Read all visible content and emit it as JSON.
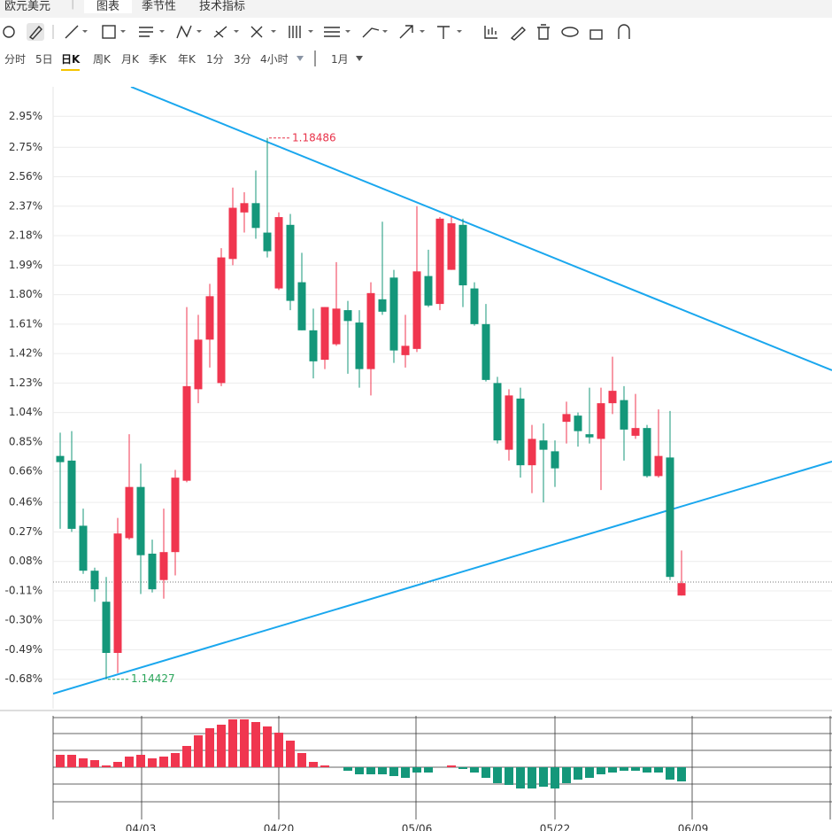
{
  "toolbar": {
    "symbol": "欧元美元",
    "tabs": [
      "图表",
      "季节性",
      "技术指标"
    ],
    "periods": [
      "分时",
      "5日",
      "日K",
      "周K",
      "月K",
      "季K",
      "年K",
      "1分",
      "3分",
      "4小时"
    ],
    "range": "1月"
  },
  "chart_data": [
    {
      "type": "candlestick",
      "categories": [
        null,
        null,
        null,
        null,
        null,
        null,
        null,
        "04/03",
        null,
        null,
        null,
        null,
        null,
        null,
        null,
        null,
        null,
        null,
        null,
        "04/20",
        null,
        null,
        null,
        null,
        null,
        null,
        null,
        null,
        null,
        null,
        null,
        "05/06",
        null,
        null,
        null,
        null,
        null,
        null,
        null,
        null,
        null,
        null,
        null,
        "05/22",
        null,
        null,
        null,
        null,
        null,
        null,
        null,
        null,
        null,
        null,
        null,
        "06/09"
      ],
      "open": [
        0.76,
        0.73,
        0.31,
        0.02,
        -0.18,
        -0.51,
        0.23,
        0.56,
        0.13,
        -0.04,
        0.14,
        0.6,
        1.19,
        1.51,
        1.23,
        2.03,
        2.33,
        2.39,
        2.2,
        1.84,
        2.25,
        1.88,
        1.57,
        1.38,
        1.48,
        1.7,
        1.62,
        1.32,
        1.77,
        1.91,
        1.41,
        1.45,
        1.92,
        1.74,
        1.96,
        2.25,
        1.84,
        1.61,
        1.23,
        0.8,
        1.13,
        0.7,
        0.86,
        0.79,
        0.98,
        1.02,
        0.9,
        0.87,
        1.1,
        1.12,
        0.89,
        0.94,
        0.63,
        0.75,
        -0.14,
        null
      ],
      "high": [
        0.91,
        0.92,
        0.42,
        0.04,
        -0.02,
        0.36,
        0.9,
        0.71,
        0.22,
        0.42,
        0.67,
        1.72,
        1.67,
        1.87,
        2.1,
        2.49,
        2.46,
        2.6,
        2.81,
        2.33,
        2.32,
        2.07,
        1.71,
        1.72,
        2.01,
        1.76,
        1.7,
        1.88,
        2.27,
        1.96,
        1.67,
        2.37,
        2.09,
        2.3,
        2.3,
        2.29,
        1.88,
        1.74,
        1.27,
        1.19,
        1.2,
        0.96,
        0.97,
        0.86,
        1.11,
        1.04,
        1.2,
        1.2,
        1.4,
        1.21,
        1.16,
        0.96,
        1.06,
        1.05,
        0.15,
        null
      ],
      "low": [
        0.29,
        0.27,
        0.0,
        -0.18,
        -0.68,
        -0.64,
        0.22,
        -0.13,
        -0.12,
        -0.16,
        -0.01,
        0.59,
        1.1,
        1.33,
        1.21,
        1.99,
        2.2,
        2.16,
        2.04,
        1.83,
        1.7,
        1.57,
        1.26,
        1.32,
        1.47,
        1.29,
        1.2,
        1.15,
        1.67,
        1.36,
        1.33,
        1.43,
        1.72,
        1.7,
        1.96,
        1.72,
        1.6,
        1.24,
        0.84,
        0.73,
        0.62,
        0.52,
        0.46,
        0.56,
        0.84,
        0.82,
        0.84,
        0.54,
        1.03,
        0.73,
        0.87,
        0.62,
        0.62,
        -0.04,
        -0.14,
        null
      ],
      "close": [
        0.72,
        0.29,
        0.02,
        -0.1,
        -0.51,
        0.26,
        0.56,
        0.12,
        -0.1,
        0.14,
        0.62,
        1.21,
        1.51,
        1.79,
        2.04,
        2.36,
        2.39,
        2.23,
        2.08,
        2.3,
        1.76,
        1.57,
        1.37,
        1.72,
        1.71,
        1.63,
        1.32,
        1.81,
        1.69,
        1.44,
        1.47,
        1.95,
        1.73,
        2.29,
        2.26,
        1.86,
        1.61,
        1.25,
        0.86,
        1.15,
        0.7,
        0.87,
        0.8,
        0.68,
        1.03,
        0.92,
        0.88,
        1.1,
        1.18,
        0.93,
        0.94,
        0.63,
        0.76,
        -0.02,
        -0.06,
        null
      ],
      "up_color": "#f0364f",
      "down_color": "#14977a",
      "ylim": [
        -0.87,
        3.14
      ],
      "yticks": [
        {
          "value": 2.95,
          "label": "2.95%"
        },
        {
          "value": 2.75,
          "label": "2.75%"
        },
        {
          "value": 2.56,
          "label": "2.56%"
        },
        {
          "value": 2.37,
          "label": "2.37%"
        },
        {
          "value": 2.18,
          "label": "2.18%"
        },
        {
          "value": 1.99,
          "label": "1.99%"
        },
        {
          "value": 1.8,
          "label": "1.80%"
        },
        {
          "value": 1.61,
          "label": "1.61%"
        },
        {
          "value": 1.42,
          "label": "1.42%"
        },
        {
          "value": 1.23,
          "label": "1.23%"
        },
        {
          "value": 1.04,
          "label": "1.04%"
        },
        {
          "value": 0.85,
          "label": "0.85%"
        },
        {
          "value": 0.66,
          "label": "0.66%"
        },
        {
          "value": 0.46,
          "label": "0.46%"
        },
        {
          "value": 0.27,
          "label": "0.27%"
        },
        {
          "value": 0.08,
          "label": "0.08%"
        },
        {
          "value": -0.11,
          "label": "-0.11%"
        },
        {
          "value": -0.3,
          "label": "-0.30%"
        },
        {
          "value": -0.49,
          "label": "-0.49%"
        },
        {
          "value": -0.68,
          "label": "-0.68%"
        }
      ],
      "grid": true,
      "max_label": "1.18486",
      "min_label": "1.14427"
    },
    {
      "type": "bar",
      "values": [
        14,
        14,
        10,
        8,
        2,
        6,
        12,
        14,
        10,
        12,
        16,
        24,
        36,
        44,
        48,
        54,
        54,
        51,
        46,
        39,
        30,
        16,
        6,
        2,
        0,
        -4,
        -8,
        -8,
        -8,
        -10,
        -12,
        -6,
        -6,
        0,
        2,
        -2,
        -6,
        -12,
        -18,
        -20,
        -24,
        -24,
        -22,
        -24,
        -18,
        -14,
        -12,
        -8,
        -6,
        -4,
        -4,
        -6,
        -6,
        -14,
        -16,
        null
      ],
      "ylim": [
        -59,
        58
      ],
      "up_color": "#f0364f",
      "down_color": "#14977a"
    }
  ]
}
